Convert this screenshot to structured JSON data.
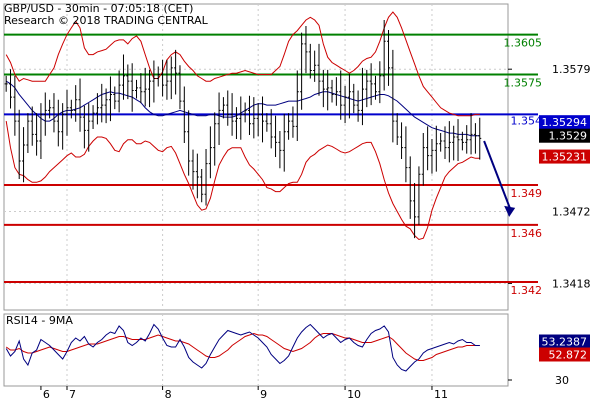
{
  "header": {
    "title": "GBP/USD - 30min - 07:05:18 (CET)",
    "source": "Research © 2018 TRADING CENTRAL"
  },
  "colors": {
    "bar": "#000000",
    "band": "#cc0000",
    "ma": "#000080",
    "support": "#cc0000",
    "resistance": "#008000",
    "pivot": "#0000cc",
    "arrow": "#000080",
    "rsi_line": "#000080",
    "rsi_signal": "#cc0000",
    "last_price_bg": "#000000",
    "bid_bg": "#cc0000",
    "ma_price_bg": "#0000cc",
    "rsi_value_bg": "#000080",
    "rsi_signal_bg": "#cc0000",
    "grid": "#cccccc"
  },
  "chart_data": [
    {
      "type": "line",
      "title": "GBP/USD - 30min",
      "x_ticks": [
        "6",
        "7",
        "8",
        "9",
        "10",
        "11"
      ],
      "y_ticks": [
        1.3418,
        1.3472,
        1.3579
      ],
      "ylim": [
        1.3398,
        1.3628
      ],
      "grid": true,
      "levels": [
        {
          "label": "1.3605",
          "value": 1.3605,
          "kind": "resistance"
        },
        {
          "label": "1.3575",
          "value": 1.3575,
          "kind": "resistance"
        },
        {
          "label": "1.354",
          "value": 1.3545,
          "kind": "pivot"
        },
        {
          "label": "1.349",
          "value": 1.3492,
          "kind": "support"
        },
        {
          "label": "1.346",
          "value": 1.3462,
          "kind": "support"
        },
        {
          "label": "1.342",
          "value": 1.3419,
          "kind": "support"
        }
      ],
      "price_tags": [
        {
          "label": "1.35294",
          "value": 1.35294,
          "kind": "ma"
        },
        {
          "label": "1.3529",
          "value": 1.3529,
          "kind": "last"
        },
        {
          "label": "1.35231",
          "value": 1.35231,
          "kind": "bid"
        }
      ],
      "close": [
        1.3568,
        1.3558,
        1.354,
        1.351,
        1.3522,
        1.354,
        1.353,
        1.3525,
        1.3545,
        1.3548,
        1.355,
        1.354,
        1.3532,
        1.3545,
        1.355,
        1.3548,
        1.3556,
        1.3543,
        1.3533,
        1.354,
        1.3546,
        1.355,
        1.3552,
        1.3556,
        1.356,
        1.3555,
        1.3567,
        1.3574,
        1.357,
        1.3563,
        1.3565,
        1.3562,
        1.3564,
        1.357,
        1.3572,
        1.3575,
        1.3567,
        1.357,
        1.358,
        1.3576,
        1.3555,
        1.3532,
        1.351,
        1.3502,
        1.3498,
        1.3485,
        1.3508,
        1.352,
        1.3538,
        1.3548,
        1.3552,
        1.3545,
        1.354,
        1.3542,
        1.3545,
        1.3548,
        1.3538,
        1.3542,
        1.3545,
        1.354,
        1.3538,
        1.3528,
        1.3524,
        1.3518,
        1.3532,
        1.354,
        1.3536,
        1.3562,
        1.3598,
        1.3592,
        1.3578,
        1.3582,
        1.357,
        1.3564,
        1.3565,
        1.356,
        1.3562,
        1.3552,
        1.3558,
        1.3562,
        1.3552,
        1.3548,
        1.3564,
        1.357,
        1.3568,
        1.3562,
        1.3574,
        1.36,
        1.358,
        1.354,
        1.3528,
        1.352,
        1.3505,
        1.348,
        1.3468,
        1.35,
        1.352,
        1.3514,
        1.3518,
        1.3523,
        1.3525,
        1.352,
        1.3524,
        1.3528,
        1.3526,
        1.3524,
        1.3526,
        1.353,
        1.3529,
        1.3527
      ],
      "bollinger_upper": [
        1.359,
        1.3584,
        1.3575,
        1.357,
        1.3572,
        1.3571,
        1.357,
        1.357,
        1.357,
        1.357,
        1.3575,
        1.358,
        1.359,
        1.3598,
        1.3605,
        1.361,
        1.3615,
        1.361,
        1.3595,
        1.359,
        1.359,
        1.3592,
        1.3593,
        1.3594,
        1.3597,
        1.36,
        1.3601,
        1.3601,
        1.3598,
        1.3602,
        1.3604,
        1.36,
        1.359,
        1.358,
        1.3572,
        1.3572,
        1.3577,
        1.3586,
        1.359,
        1.3592,
        1.359,
        1.3585,
        1.3581,
        1.3578,
        1.3574,
        1.3572,
        1.357,
        1.357,
        1.3572,
        1.3573,
        1.3574,
        1.3575,
        1.3576,
        1.3576,
        1.3577,
        1.3578,
        1.3577,
        1.3576,
        1.3575,
        1.3575,
        1.3575,
        1.3575,
        1.3578,
        1.3581,
        1.359,
        1.36,
        1.3605,
        1.3608,
        1.3612,
        1.3616,
        1.3618,
        1.3616,
        1.3612,
        1.3598,
        1.3588,
        1.3584,
        1.3582,
        1.358,
        1.3578,
        1.3576,
        1.3578,
        1.3581,
        1.3585,
        1.3587,
        1.3588,
        1.3592,
        1.36,
        1.361,
        1.3618,
        1.3622,
        1.3618,
        1.361,
        1.3601,
        1.3592,
        1.3583,
        1.3574,
        1.3566,
        1.3562,
        1.3558,
        1.3554,
        1.355,
        1.3548,
        1.3546,
        1.3545,
        1.3544,
        1.3544,
        1.3544,
        1.3544,
        1.3545,
        1.3545
      ],
      "bollinger_lower": [
        1.354,
        1.352,
        1.3505,
        1.35,
        1.3499,
        1.3496,
        1.3494,
        1.3494,
        1.3495,
        1.3498,
        1.3502,
        1.3505,
        1.3508,
        1.3511,
        1.3514,
        1.3516,
        1.3513,
        1.3513,
        1.3515,
        1.3521,
        1.3525,
        1.3528,
        1.3528,
        1.3527,
        1.3523,
        1.3518,
        1.3517,
        1.3523,
        1.3526,
        1.3526,
        1.3523,
        1.3523,
        1.3525,
        1.3524,
        1.3521,
        1.3518,
        1.3517,
        1.352,
        1.3521,
        1.3516,
        1.3508,
        1.35,
        1.3493,
        1.3485,
        1.3477,
        1.3473,
        1.3474,
        1.3482,
        1.3495,
        1.3507,
        1.3513,
        1.3518,
        1.352,
        1.352,
        1.352,
        1.3513,
        1.3507,
        1.3504,
        1.35,
        1.3496,
        1.349,
        1.3489,
        1.3487,
        1.3487,
        1.349,
        1.3493,
        1.3494,
        1.3494,
        1.35,
        1.3509,
        1.3513,
        1.3515,
        1.3518,
        1.352,
        1.3522,
        1.3521,
        1.3519,
        1.3517,
        1.3516,
        1.3517,
        1.3519,
        1.3521,
        1.3523,
        1.3524,
        1.3524,
        1.3517,
        1.3508,
        1.3496,
        1.3486,
        1.3478,
        1.3472,
        1.3466,
        1.3461,
        1.3459,
        1.3454,
        1.3451,
        1.3452,
        1.346,
        1.3473,
        1.3482,
        1.349,
        1.3498,
        1.3502,
        1.3505,
        1.3508,
        1.3509,
        1.3511,
        1.3513,
        1.3512,
        1.3512
      ],
      "moving_average": [
        1.357,
        1.3568,
        1.3565,
        1.356,
        1.3556,
        1.3552,
        1.3548,
        1.3545,
        1.3542,
        1.354,
        1.354,
        1.3542,
        1.3545,
        1.3547,
        1.3548,
        1.3548,
        1.3549,
        1.355,
        1.3552,
        1.3554,
        1.3556,
        1.3558,
        1.356,
        1.3561,
        1.3562,
        1.3561,
        1.3561,
        1.356,
        1.3559,
        1.3558,
        1.3556,
        1.3554,
        1.355,
        1.3547,
        1.3545,
        1.3544,
        1.3544,
        1.3545,
        1.3546,
        1.3547,
        1.3548,
        1.3547,
        1.3546,
        1.3545,
        1.3544,
        1.3544,
        1.3544,
        1.3545,
        1.3545,
        1.3544,
        1.3543,
        1.3543,
        1.3543,
        1.3544,
        1.3546,
        1.3548,
        1.355,
        1.3552,
        1.3553,
        1.3553,
        1.3552,
        1.3552,
        1.3552,
        1.3553,
        1.3554,
        1.3555,
        1.3555,
        1.3555,
        1.3556,
        1.3557,
        1.3558,
        1.356,
        1.3561,
        1.3562,
        1.3562,
        1.3561,
        1.356,
        1.3559,
        1.3558,
        1.3557,
        1.3556,
        1.3555,
        1.3556,
        1.3557,
        1.3558,
        1.3559,
        1.356,
        1.356,
        1.3559,
        1.3557,
        1.3555,
        1.3552,
        1.3549,
        1.3546,
        1.3543,
        1.3541,
        1.3539,
        1.3537,
        1.3535,
        1.3534,
        1.3533,
        1.3532,
        1.3531,
        1.3531,
        1.353,
        1.353,
        1.353,
        1.3529,
        1.3529,
        1.3529
      ],
      "forecast_arrow": {
        "from": {
          "index": 110,
          "value": 1.3525
        },
        "to": {
          "index": 116,
          "value": 1.3468
        }
      }
    },
    {
      "type": "line",
      "title": "RSI14 - 9MA",
      "y_ticks": [
        30
      ],
      "ylim": [
        26,
        74
      ],
      "series": [
        {
          "name": "RSI14",
          "value_label": "53.2387",
          "values": [
            51,
            46,
            49,
            56,
            44,
            40,
            48,
            50,
            57,
            55,
            53,
            50,
            47,
            44,
            49,
            55,
            58,
            56,
            59,
            54,
            52,
            55,
            57,
            60,
            62,
            61,
            66,
            63,
            55,
            53,
            55,
            58,
            56,
            61,
            67,
            64,
            58,
            53,
            52,
            52,
            57,
            52,
            45,
            42,
            40,
            38,
            41,
            47,
            52,
            57,
            60,
            63,
            62,
            61,
            60,
            61,
            62,
            60,
            58,
            55,
            52,
            47,
            44,
            41,
            43,
            46,
            52,
            58,
            62,
            65,
            67,
            64,
            61,
            58,
            60,
            61,
            58,
            55,
            57,
            58,
            55,
            53,
            52,
            57,
            61,
            63,
            64,
            66,
            62,
            45,
            40,
            37,
            36,
            39,
            42,
            44,
            48,
            50,
            51,
            52,
            53,
            54,
            55,
            54,
            56,
            57,
            55,
            55,
            53,
            53
          ]
        },
        {
          "name": "9MA",
          "value_label": "52.872",
          "values": [
            52,
            50,
            50,
            51,
            49,
            48,
            48,
            49,
            50,
            51,
            52,
            51,
            50,
            49,
            49,
            50,
            51,
            52,
            53,
            54,
            54,
            54,
            55,
            56,
            57,
            58,
            59,
            59,
            58,
            57,
            57,
            57,
            57,
            58,
            59,
            60,
            59,
            58,
            57,
            56,
            56,
            55,
            54,
            52,
            50,
            48,
            46,
            45,
            45,
            46,
            48,
            50,
            53,
            55,
            57,
            59,
            60,
            61,
            60,
            60,
            59,
            57,
            55,
            53,
            51,
            50,
            49,
            50,
            51,
            53,
            55,
            58,
            60,
            61,
            61,
            61,
            60,
            59,
            58,
            58,
            57,
            56,
            55,
            55,
            55,
            56,
            57,
            58,
            59,
            57,
            54,
            51,
            48,
            46,
            44,
            43,
            43,
            44,
            45,
            47,
            48,
            49,
            50,
            51,
            52,
            52,
            53,
            53,
            53,
            53
          ]
        }
      ]
    }
  ]
}
